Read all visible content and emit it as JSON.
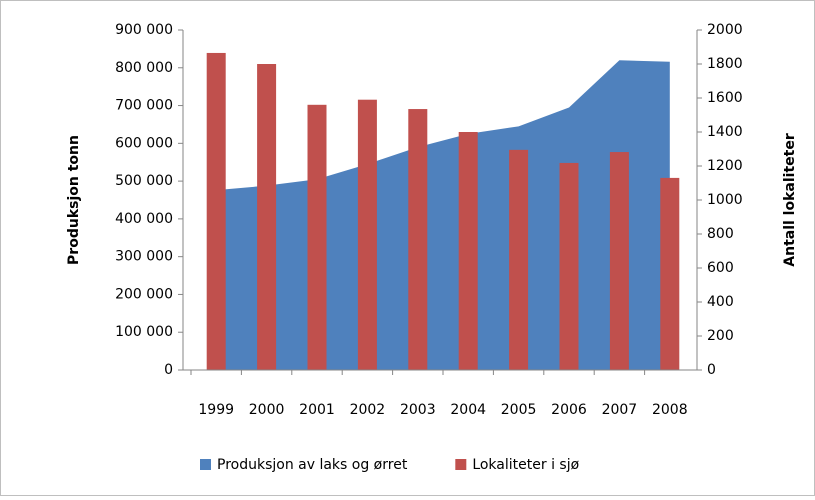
{
  "chart_data": {
    "type": "bar-area",
    "categories": [
      "1999",
      "2000",
      "2001",
      "2002",
      "2003",
      "2004",
      "2005",
      "2006",
      "2007",
      "2008"
    ],
    "series": [
      {
        "name": "Produksjon av laks og ørret",
        "color": "#4f81bd",
        "kind": "area",
        "axis": "y",
        "values": [
          476000,
          488000,
          505000,
          545000,
          590000,
          625000,
          645000,
          695000,
          820000,
          816000
        ]
      },
      {
        "name": "Lokaliteter i sjø",
        "color": "#c0504d",
        "kind": "bar",
        "axis": "y2",
        "values": [
          1865,
          1800,
          1560,
          1590,
          1535,
          1400,
          1295,
          1218,
          1282,
          1130
        ]
      }
    ],
    "ylabel": "Produksjon tonn",
    "y2label": "Antall lokaliteter",
    "ylim": [
      0,
      900000
    ],
    "yticks": [
      0,
      {
        "value": 100000,
        "label": "100 000"
      },
      {
        "value": 200000,
        "label": "200 000"
      },
      {
        "value": 300000,
        "label": "300 000"
      },
      {
        "value": 400000,
        "label": "400 000"
      },
      {
        "value": 500000,
        "label": "500 000"
      },
      {
        "value": 600000,
        "label": "600 000"
      },
      {
        "value": 700000,
        "label": "700 000"
      },
      {
        "value": 800000,
        "label": "800 000"
      },
      {
        "value": 900000,
        "label": "900 000"
      }
    ],
    "y2lim": [
      0,
      2000
    ],
    "y2ticks": [
      0,
      200,
      400,
      600,
      800,
      1000,
      1200,
      1400,
      1600,
      1800,
      2000
    ],
    "legend": "bottom"
  }
}
